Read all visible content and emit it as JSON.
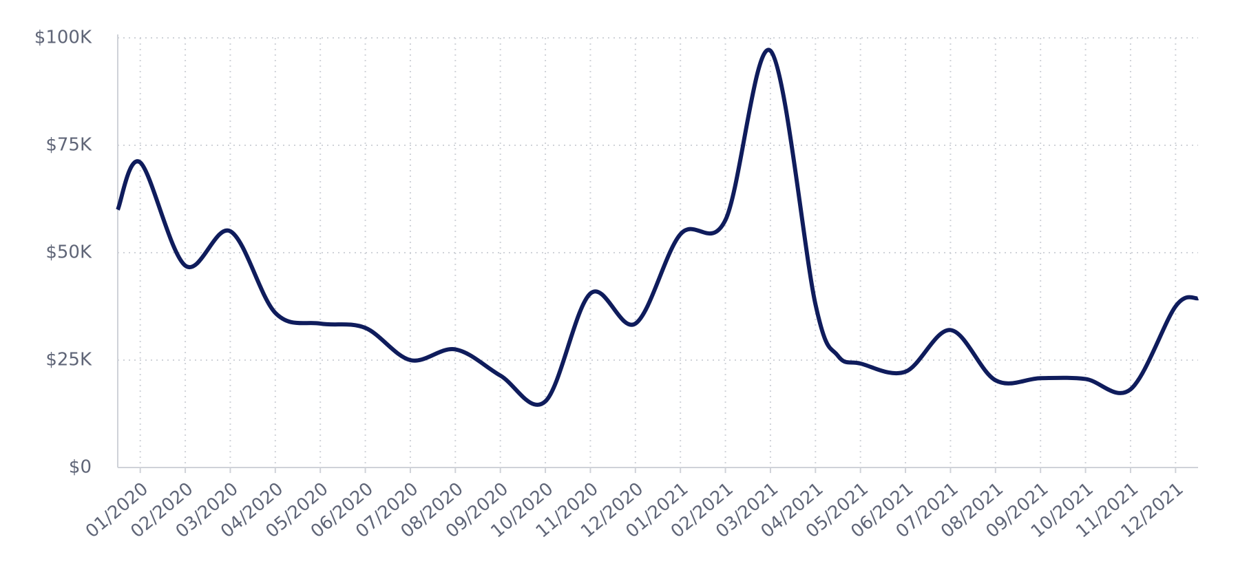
{
  "chart_data": {
    "type": "line",
    "x": [
      -0.5,
      0,
      1,
      2,
      3,
      4,
      5,
      6,
      7,
      8,
      9,
      10,
      11,
      12,
      13,
      14,
      15,
      15.5,
      16,
      17,
      18,
      19,
      20,
      21,
      22,
      23,
      23.5
    ],
    "series": [
      {
        "name": "Value",
        "color": "#0f1c5c",
        "values": [
          60,
          71,
          47,
          55,
          36,
          33.5,
          32.5,
          25,
          27.5,
          21.4,
          15.4,
          40.5,
          33.5,
          54.3,
          57.6,
          97,
          38,
          26,
          24.2,
          22.3,
          32,
          20.3,
          20.8,
          20.6,
          18.2,
          37.5,
          39.4
        ]
      }
    ],
    "xlim": [
      -0.5,
      23.5
    ],
    "xticks": [
      {
        "value": 0,
        "label": "01/2020"
      },
      {
        "value": 1,
        "label": "02/2020"
      },
      {
        "value": 2,
        "label": "03/2020"
      },
      {
        "value": 3,
        "label": "04/2020"
      },
      {
        "value": 4,
        "label": "05/2020"
      },
      {
        "value": 5,
        "label": "06/2020"
      },
      {
        "value": 6,
        "label": "07/2020"
      },
      {
        "value": 7,
        "label": "08/2020"
      },
      {
        "value": 8,
        "label": "09/2020"
      },
      {
        "value": 9,
        "label": "10/2020"
      },
      {
        "value": 10,
        "label": "11/2020"
      },
      {
        "value": 11,
        "label": "12/2020"
      },
      {
        "value": 12,
        "label": "01/2021"
      },
      {
        "value": 13,
        "label": "02/2021"
      },
      {
        "value": 14,
        "label": "03/2021"
      },
      {
        "value": 15,
        "label": "04/2021"
      },
      {
        "value": 16,
        "label": "05/2021"
      },
      {
        "value": 17,
        "label": "06/2021"
      },
      {
        "value": 18,
        "label": "07/2021"
      },
      {
        "value": 19,
        "label": "08/2021"
      },
      {
        "value": 20,
        "label": "09/2021"
      },
      {
        "value": 21,
        "label": "10/2021"
      },
      {
        "value": 22,
        "label": "11/2021"
      },
      {
        "value": 23,
        "label": "12/2021"
      }
    ],
    "ylim": [
      0,
      100
    ],
    "yticks": [
      {
        "value": 0,
        "label": "$0"
      },
      {
        "value": 25,
        "label": "$25K"
      },
      {
        "value": 50,
        "label": "$50K"
      },
      {
        "value": 75,
        "label": "$75K"
      },
      {
        "value": 100,
        "label": "$100K"
      }
    ],
    "grid": true
  }
}
